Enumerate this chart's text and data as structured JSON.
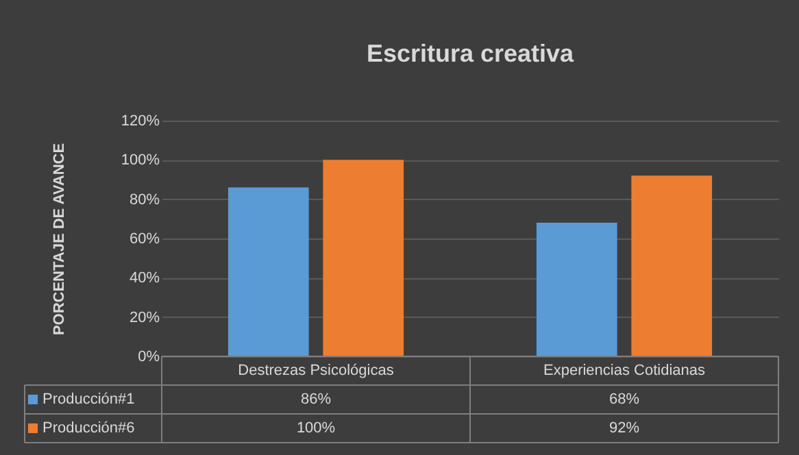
{
  "chart_data": {
    "type": "bar",
    "title": "Escritura creativa",
    "ylabel": "PORCENTAJE DE AVANCE",
    "categories": [
      "Destrezas Psicológicas",
      "Experiencias Cotidianas"
    ],
    "series": [
      {
        "name": "Producción#1",
        "color": "#5b9bd5",
        "values": [
          86,
          68
        ],
        "value_labels": [
          "86%",
          "68%"
        ]
      },
      {
        "name": "Producción#6",
        "color": "#ed7d31",
        "values": [
          100,
          92
        ],
        "value_labels": [
          "100%",
          "92%"
        ]
      }
    ],
    "ylim": [
      0,
      120
    ],
    "yticks": [
      {
        "value": 0,
        "label": "0%"
      },
      {
        "value": 20,
        "label": "20%"
      },
      {
        "value": 40,
        "label": "40%"
      },
      {
        "value": 60,
        "label": "60%"
      },
      {
        "value": 80,
        "label": "80%"
      },
      {
        "value": 100,
        "label": "100%"
      },
      {
        "value": 120,
        "label": "120%"
      }
    ],
    "grid": "y",
    "legend": "bottom"
  }
}
